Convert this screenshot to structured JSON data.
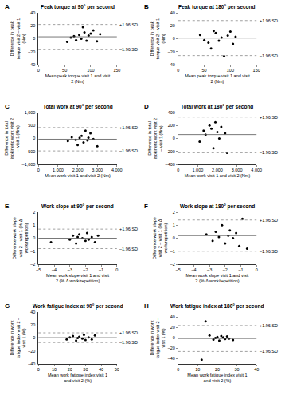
{
  "chart_data": [
    {
      "type": "scatter",
      "panel": "A",
      "title": "Peak torque at 90° per second",
      "y_label": "Difference in peak torque visit 2 – visit 1 (Nm)",
      "x_label": "Mean peak torque visit 1 and visit 2 (Nm)",
      "x": [
        55,
        62,
        68,
        72,
        78,
        82,
        85,
        88,
        92,
        96,
        100,
        105,
        112,
        118
      ],
      "values": [
        -5,
        2,
        4,
        -2,
        6,
        0,
        18,
        10,
        -3,
        5,
        8,
        13,
        -4,
        7
      ],
      "mean_difference": 3,
      "limits": [
        -17,
        22
      ],
      "limit_labels": [
        "–1.96 SD",
        "+1.96 SD"
      ],
      "xlim": [
        0,
        150
      ],
      "xticks": [
        0,
        50,
        100,
        150
      ],
      "ylim": [
        -40,
        40
      ],
      "yticks": [
        {
          "value": -40,
          "label": "–40"
        },
        {
          "value": -20,
          "label": "–20"
        },
        0,
        20,
        40
      ],
      "color": "#000000"
    },
    {
      "type": "scatter",
      "panel": "B",
      "title": "Peak torque at 180° per second",
      "y_label": "Difference in peak torque visit 2 – visit 1 (Nm)",
      "x_label": "Mean peak torque visit 1 and visit 2 (Nm)",
      "x": [
        42,
        50,
        58,
        63,
        68,
        72,
        78,
        83,
        88,
        95,
        100,
        105,
        110
      ],
      "values": [
        6,
        -2,
        -6,
        -15,
        12,
        9,
        -3,
        2,
        -27,
        5,
        11,
        -8,
        3
      ],
      "mean_difference": 1,
      "limits": [
        -26,
        28
      ],
      "limit_labels": [
        "–1.96 SD",
        "+1.96 SD"
      ],
      "xlim": [
        0,
        150
      ],
      "xticks": [
        0,
        50,
        100,
        150
      ],
      "ylim": [
        -40,
        40
      ],
      "yticks": [
        {
          "value": -40,
          "label": "–40"
        },
        {
          "value": -20,
          "label": "–20"
        },
        0,
        20,
        40
      ],
      "color": "#000000"
    },
    {
      "type": "scatter",
      "panel": "C",
      "title": "Total work at 90° per second",
      "y_label": "Difference in total isokinetic work visit 2 – visit 1 (Nm)",
      "x_label": "Mean work visit 1 and visit 2 (Nm)",
      "x": [
        1500,
        1700,
        1900,
        2000,
        2100,
        2200,
        2300,
        2400,
        2500,
        2550,
        2650,
        2800,
        3000
      ],
      "values": [
        -100,
        50,
        -50,
        -250,
        20,
        100,
        -150,
        300,
        -80,
        30,
        200,
        -20,
        -300
      ],
      "mean_difference": -30,
      "limits": [
        -480,
        420
      ],
      "limit_labels": [
        "–1.96 SD",
        "+1.96 SD"
      ],
      "xlim": [
        0,
        4000
      ],
      "xticks": [
        0,
        {
          "value": 1000,
          "label": "1,000"
        },
        {
          "value": 2000,
          "label": "2,000"
        },
        {
          "value": 3000,
          "label": "3,000"
        },
        {
          "value": 4000,
          "label": "4,000"
        }
      ],
      "ylim": [
        -1000,
        1000
      ],
      "yticks": [
        {
          "value": -1000,
          "label": "–1,000"
        },
        {
          "value": -500,
          "label": "–500"
        },
        0,
        500,
        {
          "value": 1000,
          "label": "1,000"
        }
      ],
      "color": "#000000"
    },
    {
      "type": "scatter",
      "panel": "D",
      "title": "Total work at 180° per second",
      "y_label": "Difference in total isokinetic work visit 2 – visit 1 (Nm)",
      "x_label": "Mean work visit 1 and visit 2 (Nm)",
      "x": [
        1100,
        1300,
        1400,
        1600,
        1700,
        1800,
        1900,
        2000,
        2100,
        2200,
        2400,
        2500
      ],
      "values": [
        -50,
        120,
        60,
        200,
        150,
        -150,
        250,
        100,
        0,
        180,
        80,
        -220
      ],
      "mean_difference": 60,
      "limits": [
        -220,
        330
      ],
      "limit_labels": [
        "–1.96 SD",
        "+1.96 SD"
      ],
      "xlim": [
        0,
        4000
      ],
      "xticks": [
        0,
        {
          "value": 1000,
          "label": "1,000"
        },
        {
          "value": 2000,
          "label": "2,000"
        },
        {
          "value": 3000,
          "label": "3,000"
        },
        {
          "value": 4000,
          "label": "4,000"
        }
      ],
      "ylim": [
        -400,
        400
      ],
      "yticks": [
        {
          "value": -400,
          "label": "–400"
        },
        {
          "value": -200,
          "label": "–200"
        },
        0,
        200,
        400
      ],
      "color": "#000000"
    },
    {
      "type": "scatter",
      "panel": "E",
      "title": "Work slope at 90° per second",
      "y_label": "Difference work slope visit 2 – visit 1 (% Δ work/repetition)",
      "x_label": "Mean work slope visit 1 and visit 2 (% Δ work/repetition)",
      "x": [
        -4.2,
        -3.0,
        -2.8,
        -2.6,
        -2.5,
        -2.4,
        -2.2,
        -2.0,
        -1.9,
        -1.8,
        -1.6,
        -1.4,
        -1.2
      ],
      "values": [
        -0.3,
        -0.1,
        0.2,
        -0.4,
        0.1,
        0.3,
        0,
        -0.2,
        0.4,
        -0.1,
        0.1,
        -0.3,
        0.2
      ],
      "mean_difference": 0,
      "limits": [
        -0.8,
        0.7
      ],
      "limit_labels": [
        "–1.96 SD",
        "+1.96 SD"
      ],
      "xlim": [
        -5,
        0
      ],
      "xticks": [
        {
          "value": -5,
          "label": "–5"
        },
        {
          "value": -4,
          "label": "–4"
        },
        {
          "value": -3,
          "label": "–3"
        },
        {
          "value": -2,
          "label": "–2"
        },
        {
          "value": -1,
          "label": "–1"
        },
        0
      ],
      "ylim": [
        -2,
        2
      ],
      "yticks": [
        {
          "value": -2,
          "label": "–2"
        },
        {
          "value": -1,
          "label": "–1"
        },
        0,
        1,
        2
      ],
      "color": "#000000"
    },
    {
      "type": "scatter",
      "panel": "F",
      "title": "Work slope at 180° per second",
      "y_label": "Difference work slope visit 2 – visit 1 (% Δ work/repetition)",
      "x_label": "Mean work slope visit 1 and visit 2 (% Δ work/repetition)",
      "x": [
        -3.2,
        -2.8,
        -2.6,
        -2.4,
        -2.2,
        -2.0,
        -1.8,
        -1.7,
        -1.5,
        -1.3,
        -1.1,
        -0.9,
        -0.6
      ],
      "values": [
        0.3,
        -0.2,
        0.5,
        0.1,
        1.0,
        -0.4,
        0.2,
        0.6,
        0,
        0.4,
        -0.6,
        1.5,
        -0.8
      ],
      "mean_difference": 0.2,
      "limits": [
        -1.0,
        1.4
      ],
      "limit_labels": [
        "–1.96 SD",
        "+1.96 SD"
      ],
      "xlim": [
        -5,
        0
      ],
      "xticks": [
        {
          "value": -5,
          "label": "–5"
        },
        {
          "value": -4,
          "label": "–4"
        },
        {
          "value": -3,
          "label": "–3"
        },
        {
          "value": -2,
          "label": "–2"
        },
        {
          "value": -1,
          "label": "–1"
        },
        0
      ],
      "ylim": [
        -2,
        2
      ],
      "yticks": [
        {
          "value": -2,
          "label": "–2"
        },
        {
          "value": -1,
          "label": "–1"
        },
        0,
        1,
        2
      ],
      "color": "#000000"
    },
    {
      "type": "scatter",
      "panel": "G",
      "title": "Work fatigue index at 90° per second",
      "y_label": "Difference in work fatigue index visit 2 – visit 1 (%)",
      "x_label": "Mean work fatigue index visit 1 and visit 2 (%)",
      "x": [
        18,
        20,
        22,
        24,
        25,
        26,
        28,
        29,
        30,
        32,
        34,
        36
      ],
      "values": [
        -2,
        1,
        3,
        -4,
        0,
        2,
        -1,
        5,
        -3,
        1,
        -2,
        4
      ],
      "mean_difference": 0.5,
      "limits": [
        -7,
        8
      ],
      "limit_labels": [
        "–1.96 SD",
        "+1.96 SD"
      ],
      "xlim": [
        0,
        50
      ],
      "xticks": [
        0,
        10,
        20,
        30,
        40,
        50
      ],
      "ylim": [
        -40,
        40
      ],
      "yticks": [
        {
          "value": -40,
          "label": "–40"
        },
        {
          "value": -20,
          "label": "–20"
        },
        0,
        20,
        40
      ],
      "color": "#000000"
    },
    {
      "type": "scatter",
      "panel": "H",
      "title": "Work fatigue index at 180° per second",
      "y_label": "Difference in work fatigue index visit 2 – visit 1 (%)",
      "x_label": "Mean work fatigue index visit 1 and visit 2 (%)",
      "x": [
        12,
        14,
        16,
        18,
        19,
        20,
        21,
        22,
        23,
        24,
        25,
        26,
        28
      ],
      "values": [
        -42,
        32,
        5,
        -3,
        0,
        2,
        -5,
        4,
        1,
        -2,
        3,
        -1,
        -4
      ],
      "mean_difference": -1,
      "limits": [
        -26,
        24
      ],
      "limit_labels": [
        "–1.96 SD",
        "+1.96 SD"
      ],
      "xlim": [
        0,
        40
      ],
      "xticks": [
        0,
        10,
        20,
        30,
        40
      ],
      "ylim": [
        -50,
        50
      ],
      "yticks": [
        {
          "value": -40,
          "label": "–40"
        },
        {
          "value": -20,
          "label": "–20"
        },
        0,
        20,
        40
      ],
      "color": "#000000"
    }
  ]
}
